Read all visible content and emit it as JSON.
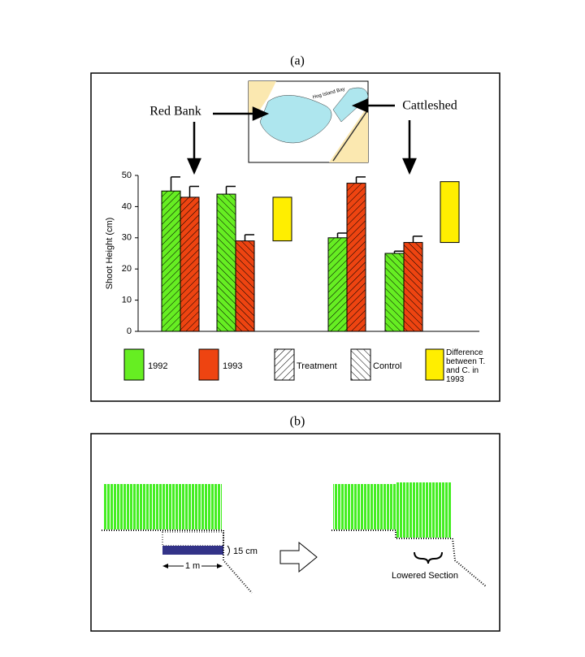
{
  "panel_a": "(a)",
  "panel_b": "(b)",
  "map_label": "Hog Island Bay",
  "sites": [
    "Red Bank",
    "Cattleshed"
  ],
  "chart_data": {
    "type": "bar",
    "ylabel": "Shoot Height (cm)",
    "ylim": [
      0,
      50
    ],
    "yticks": [
      0,
      10,
      20,
      30,
      40,
      50
    ],
    "categories": [
      null,
      null,
      null,
      null
    ],
    "hatch": [
      "Treatment",
      "Control",
      "Treatment",
      "Control"
    ],
    "hatches": [
      {
        "name": "Treatment"
      },
      {
        "name": "Control"
      }
    ],
    "series": [
      {
        "name": "1992",
        "color": "#66ee22",
        "values": [
          45,
          44,
          30,
          25
        ],
        "errors": [
          4.5,
          2.5,
          1.5,
          0.7
        ]
      },
      {
        "name": "1993",
        "color": "#ee4411",
        "values": [
          43,
          29,
          47.5,
          28.5
        ],
        "errors": [
          3.5,
          2,
          2,
          2
        ]
      }
    ],
    "difference": {
      "name": "Difference between T. and C. in 1993",
      "color": "#ffee00",
      "low": [
        29,
        28.5
      ],
      "high": [
        43,
        48
      ]
    }
  },
  "diagram": {
    "depth": "15 cm",
    "width": "1 m",
    "lowered": "Lowered Section"
  }
}
